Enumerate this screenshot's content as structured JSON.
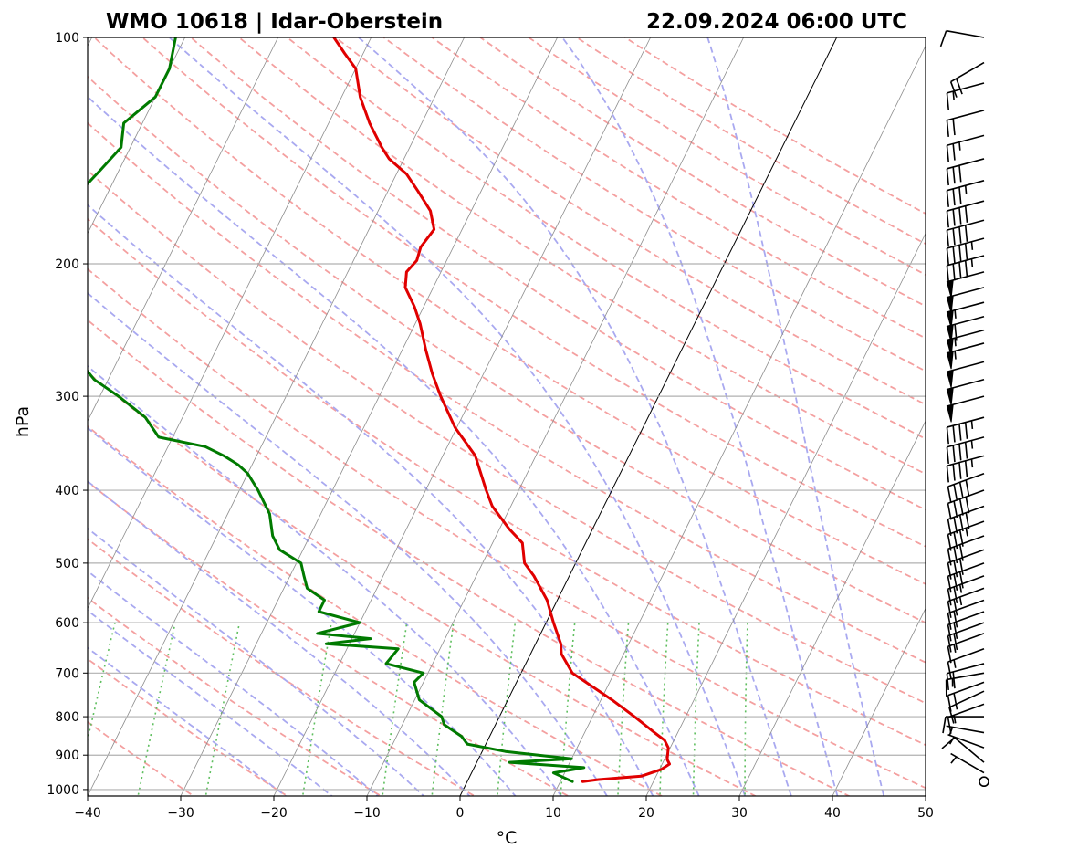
{
  "chart_data": {
    "type": "line",
    "chart_kind": "skew-T log-P diagram",
    "title_left": "WMO 10618 | Idar-Oberstein",
    "title_right": "22.09.2024 06:00 UTC",
    "xlabel": "°C",
    "ylabel": "hPa",
    "xlim": [
      -40,
      50
    ],
    "ylim": [
      1020,
      100
    ],
    "y_scale": "log",
    "x_ticks": [
      "−40",
      "−30",
      "−20",
      "−10",
      "0",
      "10",
      "20",
      "30",
      "40",
      "50"
    ],
    "y_ticks": [
      "100",
      "200",
      "300",
      "400",
      "500",
      "600",
      "700",
      "800",
      "900",
      "1000"
    ],
    "grid": "horizontal pressure lines",
    "colors": {
      "temperature": "#e00000",
      "dewpoint": "#007a00",
      "dry_adiabats": "#f4a0a0",
      "moist_adiabats": "#a9a9f0",
      "mixing_ratio": "#5fbf5f",
      "isotherms": "#8c8c8c",
      "zero_isotherm": "#000000"
    },
    "series": [
      {
        "key": "temperature",
        "pressure": [
          976,
          970,
          960,
          940,
          925,
          912,
          880,
          860,
          840,
          800,
          760,
          700,
          660,
          640,
          600,
          560,
          520,
          500,
          470,
          450,
          420,
          400,
          360,
          330,
          300,
          280,
          260,
          240,
          228,
          215,
          205,
          198,
          190,
          180,
          170,
          160,
          152,
          145,
          140,
          130,
          120,
          110,
          105,
          100
        ],
        "temp": [
          12.4,
          14,
          18.4,
          20.2,
          20.8,
          20.3,
          19.8,
          19.0,
          17.5,
          14.5,
          11.2,
          5.5,
          3.3,
          2.7,
          0.8,
          -1.1,
          -3.8,
          -5.5,
          -6.8,
          -9,
          -12,
          -13.5,
          -16.5,
          -20.2,
          -23.4,
          -25.5,
          -27.5,
          -29.5,
          -31,
          -33,
          -33.7,
          -33.2,
          -33.5,
          -33,
          -34.4,
          -36.8,
          -38.9,
          -41.6,
          -43,
          -45.6,
          -48,
          -50,
          -52,
          -54
        ]
      },
      {
        "key": "dewpoint",
        "pressure": [
          976,
          950,
          935,
          920,
          910,
          890,
          870,
          850,
          820,
          800,
          760,
          720,
          700,
          680,
          650,
          640,
          630,
          620,
          600,
          580,
          560,
          540,
          520,
          500,
          480,
          460,
          430,
          400,
          380,
          370,
          360,
          350,
          340,
          320,
          300,
          285,
          270,
          255,
          245,
          230,
          225,
          215,
          205,
          198,
          190,
          180,
          175,
          170,
          160,
          150,
          140,
          130,
          120,
          110,
          100
        ],
        "dewp": [
          11.3,
          8.8,
          11.8,
          3.5,
          10,
          2.5,
          -2,
          -3,
          -5.5,
          -6.2,
          -9.5,
          -11,
          -10.5,
          -15,
          -14.5,
          -22.5,
          -18,
          -24,
          -20,
          -25,
          -25,
          -27.5,
          -28.5,
          -29.5,
          -32.5,
          -34,
          -35.5,
          -38,
          -40,
          -41.5,
          -43.5,
          -46,
          -51.5,
          -54,
          -58,
          -61.5,
          -64,
          -69,
          -70,
          -70,
          -72,
          -71,
          -70,
          -72.5,
          -74.5,
          -73.5,
          -77.5,
          -75,
          -73,
          -72,
          -71,
          -72,
          -70,
          -70,
          -71
        ]
      }
    ],
    "wind_barbs": {
      "description": "wind barbs along right edge, from surface (calm) to 100 hPa",
      "pressure": [
        976,
        950,
        920,
        880,
        840,
        800,
        770,
        740,
        720,
        700,
        680,
        650,
        620,
        600,
        580,
        560,
        540,
        520,
        500,
        480,
        460,
        440,
        420,
        400,
        380,
        360,
        340,
        320,
        300,
        285,
        270,
        255,
        245,
        235,
        225,
        215,
        205,
        195,
        185,
        175,
        165,
        155,
        145,
        135,
        125,
        115,
        108,
        100
      ],
      "speed_kt": [
        0,
        5,
        10,
        5,
        5,
        10,
        15,
        10,
        20,
        15,
        20,
        15,
        15,
        20,
        20,
        20,
        25,
        25,
        30,
        30,
        30,
        35,
        40,
        40,
        40,
        45,
        45,
        45,
        50,
        50,
        50,
        55,
        55,
        60,
        55,
        50,
        50,
        45,
        45,
        40,
        40,
        35,
        30,
        25,
        20,
        15,
        20,
        10
      ],
      "dir_deg": [
        0,
        300,
        310,
        290,
        280,
        270,
        250,
        245,
        250,
        260,
        255,
        250,
        250,
        250,
        250,
        250,
        250,
        250,
        250,
        250,
        250,
        250,
        250,
        250,
        250,
        255,
        255,
        255,
        255,
        255,
        255,
        255,
        255,
        255,
        255,
        255,
        255,
        255,
        255,
        255,
        255,
        255,
        255,
        255,
        255,
        255,
        240,
        280
      ]
    }
  }
}
